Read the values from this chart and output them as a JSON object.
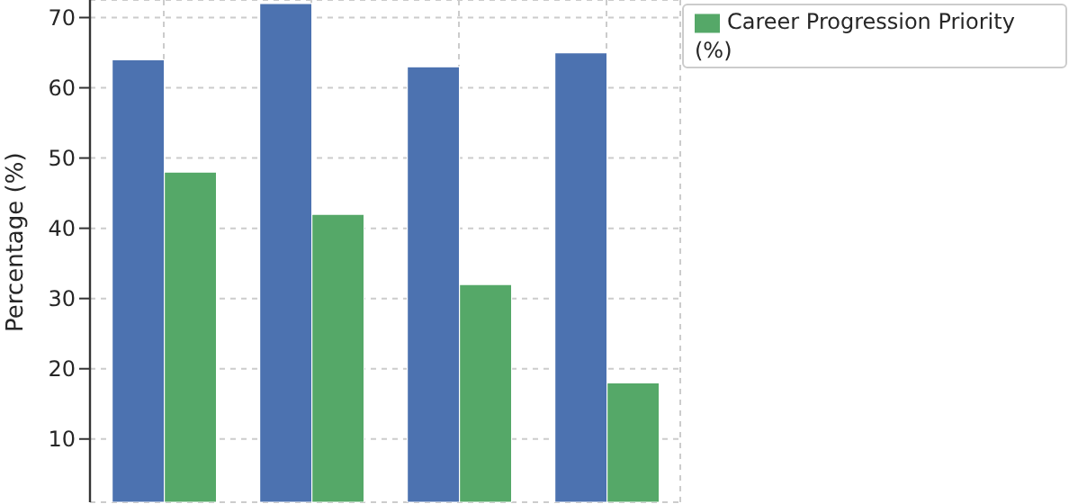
{
  "chart_data": {
    "type": "bar",
    "ylabel": "Percentage (%)",
    "categories": [
      null,
      null,
      null,
      null
    ],
    "series": [
      {
        "color": "#4c72b0",
        "values": [
          64,
          72,
          63,
          65
        ]
      },
      {
        "name": "Career Progression Priority (%)",
        "color": "#55a868",
        "values": [
          48,
          42,
          32,
          18
        ]
      }
    ],
    "ylim": [
      1,
      72.5
    ],
    "yticks": [
      10,
      20,
      30,
      40,
      50,
      60,
      70
    ],
    "grid": true,
    "legend": "top right"
  }
}
